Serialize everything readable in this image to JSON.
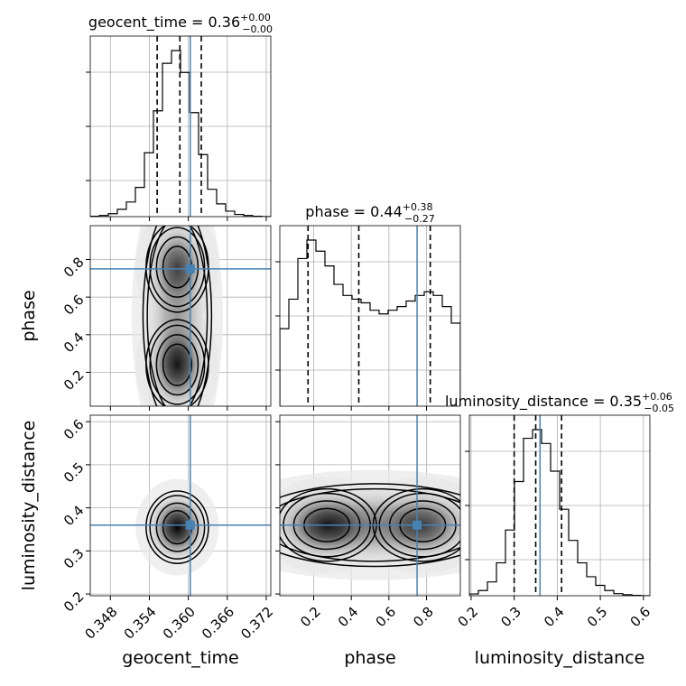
{
  "chart_data": {
    "type": "corner",
    "parameters": [
      "geocent_time",
      "phase",
      "luminosity_distance"
    ],
    "axis_labels": {
      "geocent_time": "geocent_time",
      "phase": "phase",
      "luminosity_distance": "luminosity_distance"
    },
    "titles": {
      "geocent_time": {
        "name": "geocent_time",
        "value": "0.36",
        "plus": "+0.00",
        "minus": "−0.00"
      },
      "phase": {
        "name": "phase",
        "value": "0.44",
        "plus": "+0.38",
        "minus": "−0.27"
      },
      "luminosity_distance": {
        "name": "luminosity_distance",
        "value": "0.35",
        "plus": "+0.06",
        "minus": "−0.05"
      }
    },
    "ranges": {
      "geocent_time": [
        0.3449,
        0.3727
      ],
      "phase": [
        0.02,
        0.98
      ],
      "luminosity_distance": [
        0.196,
        0.615
      ]
    },
    "ticks": {
      "geocent_time": {
        "values": [
          0.348,
          0.354,
          0.36,
          0.366,
          0.372
        ],
        "labels": [
          "0.348",
          "0.354",
          "0.360",
          "0.366",
          "0.372"
        ]
      },
      "phase": {
        "values": [
          0.2,
          0.4,
          0.6,
          0.8
        ],
        "labels": [
          "0.2",
          "0.4",
          "0.6",
          "0.8"
        ]
      },
      "luminosity_distance": {
        "values": [
          0.2,
          0.3,
          0.4,
          0.5,
          0.6
        ],
        "labels": [
          "0.2",
          "0.3",
          "0.4",
          "0.5",
          "0.6"
        ]
      }
    },
    "truths": {
      "geocent_time": 0.3603,
      "phase": 0.75,
      "luminosity_distance": 0.36
    },
    "quantiles": {
      "geocent_time": [
        0.3552,
        0.3587,
        0.362
      ],
      "phase": [
        0.17,
        0.44,
        0.82
      ],
      "luminosity_distance": [
        0.3,
        0.35,
        0.41
      ]
    },
    "histograms": {
      "geocent_time": {
        "bin_edges_range": [
          0.3449,
          0.3727
        ],
        "bins": 20,
        "counts": [
          1,
          3,
          8,
          20,
          40,
          80,
          175,
          290,
          420,
          455,
          395,
          285,
          170,
          75,
          35,
          15,
          6,
          3,
          1,
          0
        ]
      },
      "phase": {
        "bin_edges_range": [
          0.02,
          0.98
        ],
        "bins": 20,
        "counts": [
          210,
          290,
          400,
          450,
          420,
          380,
          330,
          300,
          290,
          280,
          260,
          250,
          260,
          270,
          285,
          300,
          310,
          300,
          270,
          225
        ]
      },
      "luminosity_distance": {
        "bin_edges_range": [
          0.196,
          0.615
        ],
        "bins": 20,
        "counts": [
          5,
          15,
          40,
          95,
          190,
          330,
          455,
          480,
          440,
          360,
          250,
          160,
          95,
          55,
          30,
          15,
          6,
          3,
          1,
          0
        ]
      }
    },
    "density_2d": {
      "phase_vs_geocent_time": {
        "blobs": [
          {
            "x": 0.3583,
            "y": 0.24,
            "sx": 0.002,
            "sy": 0.1,
            "w": 1.0
          },
          {
            "x": 0.3583,
            "y": 0.76,
            "sx": 0.002,
            "sy": 0.1,
            "w": 0.75
          },
          {
            "x": 0.3583,
            "y": 0.5,
            "sx": 0.0022,
            "sy": 0.25,
            "w": 0.35
          }
        ],
        "contour_levels": [
          0.25,
          0.5,
          0.75,
          0.9
        ]
      },
      "luminosity_distance_vs_geocent_time": {
        "blobs": [
          {
            "x": 0.3583,
            "y": 0.355,
            "sx": 0.002,
            "sy": 0.035,
            "w": 1.0
          }
        ],
        "contour_levels": [
          0.25,
          0.5,
          0.75,
          0.9
        ]
      },
      "luminosity_distance_vs_phase": {
        "blobs": [
          {
            "x": 0.27,
            "y": 0.36,
            "sx": 0.11,
            "sy": 0.035,
            "w": 1.0
          },
          {
            "x": 0.78,
            "y": 0.36,
            "sx": 0.11,
            "sy": 0.035,
            "w": 0.75
          },
          {
            "x": 0.52,
            "y": 0.36,
            "sx": 0.28,
            "sy": 0.04,
            "w": 0.45
          }
        ],
        "contour_levels": [
          0.25,
          0.5,
          0.75,
          0.9
        ]
      }
    },
    "colors": {
      "truth": "#4682b4",
      "hist": "#000000",
      "grid": "#b0b0b0",
      "quantile": "#000000"
    }
  }
}
